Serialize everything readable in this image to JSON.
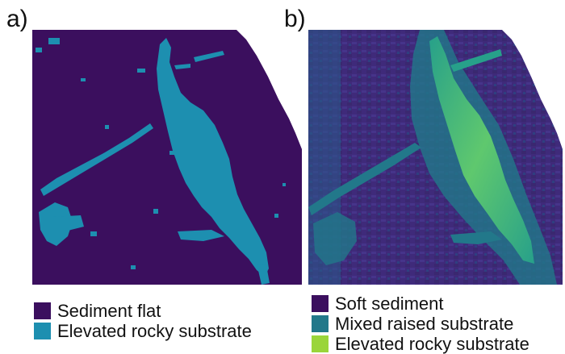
{
  "panel_a": {
    "label": "a)",
    "legend": [
      {
        "text": "Sediment flat",
        "color": "#3b0f5e"
      },
      {
        "text": "Elevated rocky substrate",
        "color": "#1d8fb0"
      }
    ]
  },
  "panel_b": {
    "label": "b)",
    "legend": [
      {
        "text": "Soft sediment",
        "color": "#3b0f5e"
      },
      {
        "text": "Mixed raised substrate",
        "color": "#22788a"
      },
      {
        "text": "Elevated rocky substrate",
        "color": "#9ad53a"
      }
    ]
  },
  "colors": {
    "background_class": "#3b0f5e",
    "panel_a_feature": "#1d8fb0",
    "panel_b_ridge_dark": "#2a5a8a",
    "panel_b_ridge_mid": "#27a08a",
    "panel_b_ridge_high": "#5fc86e",
    "panel_b_base": "#3f2a7a"
  }
}
